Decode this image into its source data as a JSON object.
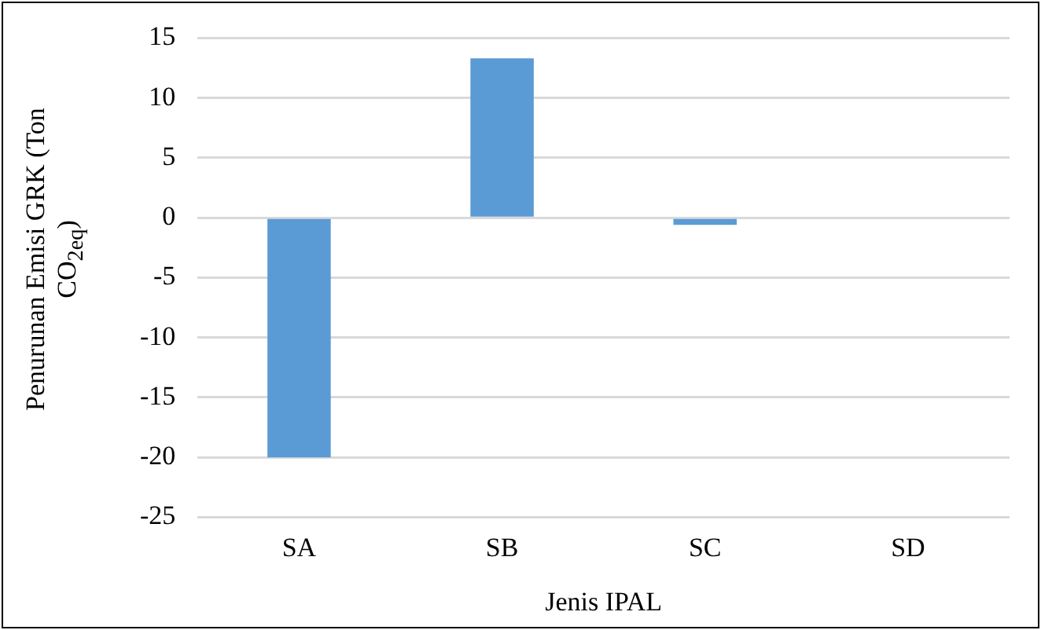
{
  "chart_data": {
    "type": "bar",
    "xlabel": "Jenis IPAL",
    "ylabel": "Penurunan Emisi GRK (Ton CO$_{2eq}$)",
    "categories": [
      "SA",
      "SB",
      "SC",
      "SD"
    ],
    "values": [
      -20,
      13.3,
      -0.6,
      0
    ],
    "color": "#5b9bd5",
    "ylim": [
      -25,
      15
    ],
    "yticks": [
      -25,
      -20,
      -15,
      -10,
      -5,
      0,
      5,
      10,
      15
    ],
    "grid": "y",
    "legend": false
  }
}
